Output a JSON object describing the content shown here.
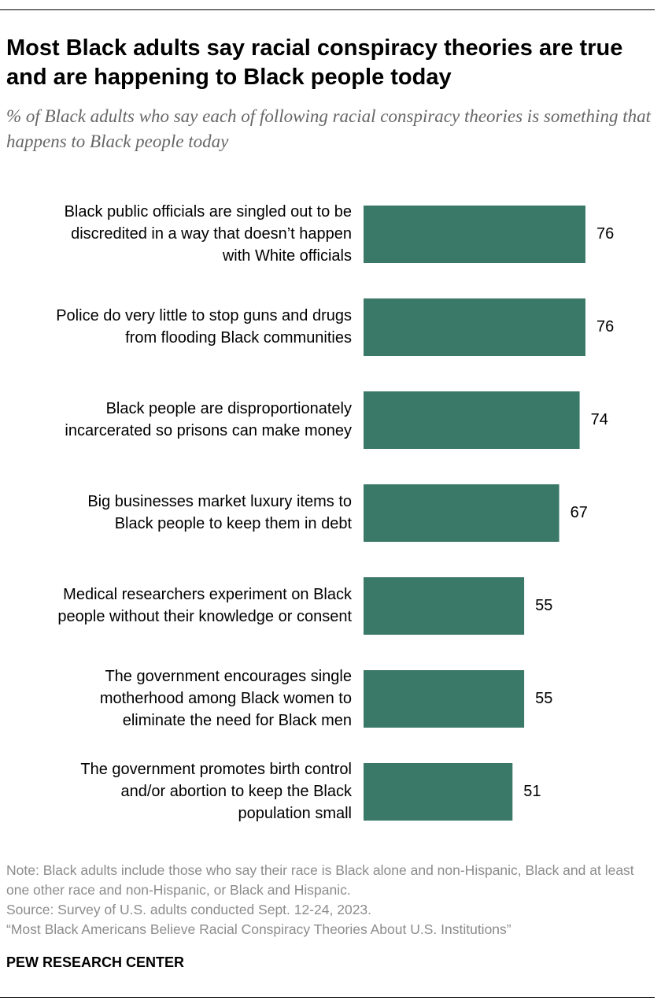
{
  "title": "Most Black adults say racial conspiracy theories are true and are happening to Black people today",
  "subtitle": "% of Black adults who say each of following racial conspiracy theories is something that happens to Black people today",
  "colors": {
    "bar": "#3a7868",
    "text": "#000000",
    "subtitle": "#666666",
    "note": "#8c8c8c"
  },
  "chart_data": {
    "type": "bar",
    "orientation": "horizontal",
    "categories": [
      "Black public officials are singled out to be discredited in a way that doesn’t happen with White officials",
      "Police do very little to stop guns and drugs from flooding Black communities",
      "Black people are disproportionately incarcerated so prisons can make money",
      "Big businesses market luxury items to Black people to keep them in debt",
      "Medical researchers experiment on Black people without their knowledge or consent",
      "The government encourages single motherhood among Black women to eliminate the need for Black men",
      "The government promotes birth control and/or abortion to keep the Black population small"
    ],
    "category_lines": [
      [
        "Black public officials are singled out to be",
        "discredited in a way that doesn’t happen",
        "with White officials"
      ],
      [
        "Police do very little to stop guns and drugs",
        "from flooding Black communities"
      ],
      [
        "Black people are disproportionately",
        "incarcerated so prisons can make money"
      ],
      [
        "Big businesses market luxury items to",
        "Black people to keep them in debt"
      ],
      [
        "Medical researchers experiment on Black",
        "people without their knowledge or consent"
      ],
      [
        "The government encourages single",
        "motherhood among Black women to",
        "eliminate the need for Black men"
      ],
      [
        "The government promotes birth control",
        "and/or abortion to keep the Black",
        "population small"
      ]
    ],
    "values": [
      76,
      76,
      74,
      67,
      55,
      55,
      51
    ],
    "data_labels": [
      "76",
      "76",
      "74",
      "67",
      "55",
      "55",
      "51"
    ],
    "xlim": [
      0,
      100
    ],
    "grid": false,
    "legend": "none"
  },
  "footer": {
    "note": "Note: Black adults include those who say their race is Black alone and non-Hispanic, Black and at least one other race and non-Hispanic, or Black and Hispanic.",
    "source": "Source: Survey of U.S. adults conducted Sept. 12-24, 2023.",
    "report": "“Most Black Americans Believe Racial Conspiracy Theories About U.S. Institutions”",
    "brand": "PEW RESEARCH CENTER"
  }
}
